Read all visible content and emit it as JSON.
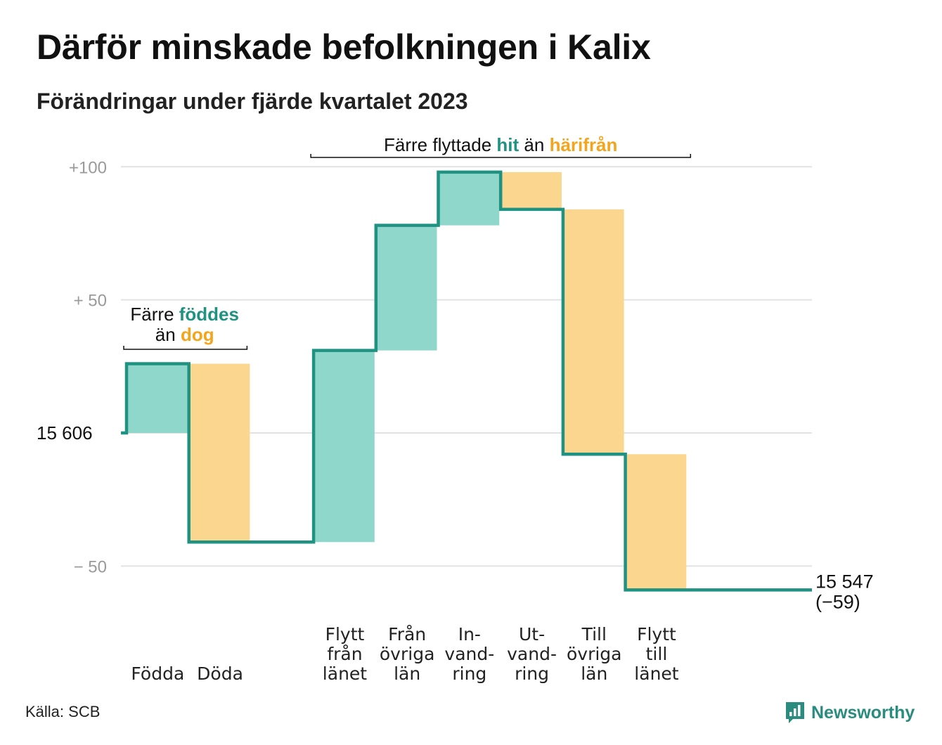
{
  "title": "Därför minskade befolkningen i Kalix",
  "subtitle": "Förändringar under fjärde kvartalet 2023",
  "source": "Källa: SCB",
  "brand": "Newsworthy",
  "colors": {
    "teal": "#1f9282",
    "teal_fill": "#8fd6cb",
    "orange": "#f2a51d",
    "orange_fill": "#fbd68e",
    "grid": "#e2e2e2",
    "axis_text": "#9a9a9a"
  },
  "chart_data": {
    "type": "waterfall",
    "base": 15606,
    "base_label": "15   606",
    "end_label": "15 547",
    "end_change_label": "(−59)",
    "yticks": [
      {
        "value": 100,
        "label": "+100"
      },
      {
        "value": 50,
        "label": "+  50"
      },
      {
        "value": -50,
        "label": "−  50"
      }
    ],
    "ylim": [
      -62,
      104
    ],
    "grid": true,
    "steps": [
      {
        "label": [
          "Födda"
        ],
        "change": 26,
        "kind": "in"
      },
      {
        "label": [
          "Döda"
        ],
        "change": -67,
        "kind": "out"
      },
      {
        "label": [
          ""
        ],
        "change": 0,
        "kind": "none"
      },
      {
        "label": [
          "Flytt",
          "från",
          "länet"
        ],
        "change": 72,
        "kind": "in"
      },
      {
        "label": [
          "Från",
          "övriga",
          "län"
        ],
        "change": 47,
        "kind": "in"
      },
      {
        "label": [
          "In-",
          "vand-",
          "ring"
        ],
        "change": 20,
        "kind": "in"
      },
      {
        "label": [
          "Ut-",
          "vand-",
          "ring"
        ],
        "change": -14,
        "kind": "out"
      },
      {
        "label": [
          "Till",
          "övriga",
          "län"
        ],
        "change": -92,
        "kind": "out"
      },
      {
        "label": [
          "Flytt",
          "till",
          "länet"
        ],
        "change": -51,
        "kind": "out"
      },
      {
        "label": [
          ""
        ],
        "change": 0,
        "kind": "none"
      }
    ],
    "annotations": [
      {
        "parts": [
          {
            "text": "Färre ",
            "style": "plain"
          },
          {
            "text": "föddes",
            "style": "in"
          }
        ],
        "parts2": [
          {
            "text": "än ",
            "style": "plain"
          },
          {
            "text": "dog",
            "style": "out"
          }
        ],
        "from_step": 0,
        "to_step": 1
      },
      {
        "parts": [
          {
            "text": "Färre flyttade ",
            "style": "plain"
          },
          {
            "text": "hit",
            "style": "in"
          },
          {
            "text": " än ",
            "style": "plain"
          },
          {
            "text": "härifrån",
            "style": "out"
          }
        ],
        "from_step": 3,
        "to_step": 8
      }
    ]
  }
}
